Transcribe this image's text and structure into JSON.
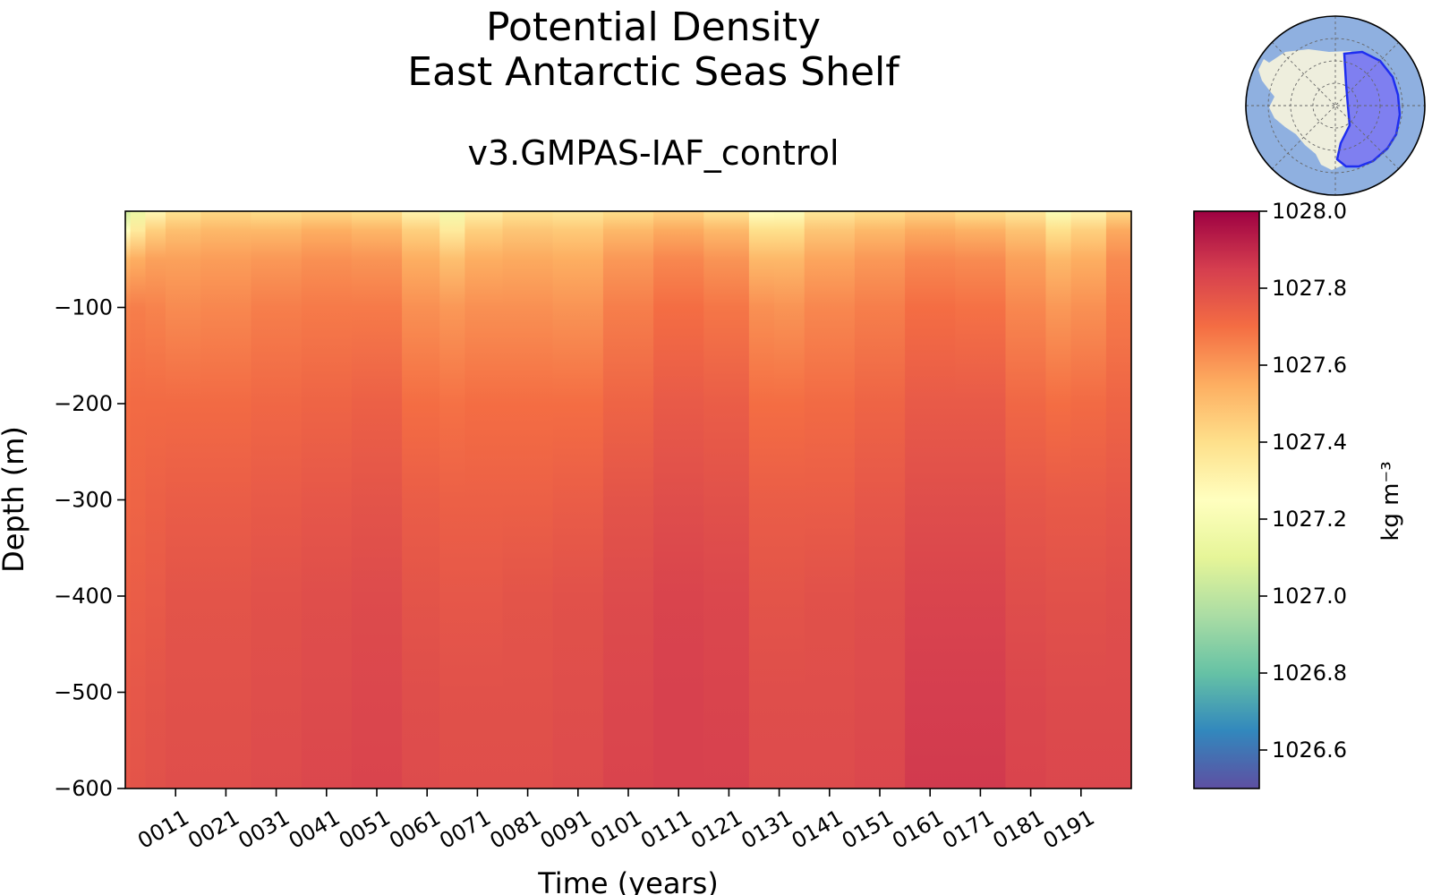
{
  "titles": {
    "line1": "Potential Density",
    "line2": "East Antarctic Seas Shelf",
    "subtitle": "v3.GMPAS-IAF_control"
  },
  "colors": {
    "cmap": [
      "#5e4fa2",
      "#3288bd",
      "#66c2a5",
      "#abdda4",
      "#e6f598",
      "#ffffbf",
      "#fee08b",
      "#fdae61",
      "#f46d43",
      "#d53e4f",
      "#9e0142"
    ],
    "inset_ocean": "#8fb0e0",
    "inset_land": "#eeeedd",
    "inset_region": "#7f7ff0",
    "inset_region_edge": "#1f2ef0"
  },
  "chart_data": {
    "type": "heatmap",
    "title": "Potential Density\nEast Antarctic Seas Shelf",
    "subtitle": "v3.GMPAS-IAF_control",
    "xlabel": "Time (years)",
    "ylabel": "Depth (m)",
    "xlim": [
      1,
      201
    ],
    "ylim": [
      -600,
      0
    ],
    "x_ticks": [
      11,
      21,
      31,
      41,
      51,
      61,
      71,
      81,
      91,
      101,
      111,
      121,
      131,
      141,
      151,
      161,
      171,
      181,
      191
    ],
    "x_tick_labels": [
      "0011",
      "0021",
      "0031",
      "0041",
      "0051",
      "0061",
      "0071",
      "0081",
      "0091",
      "0101",
      "0111",
      "0121",
      "0131",
      "0141",
      "0151",
      "0161",
      "0171",
      "0181",
      "0191"
    ],
    "y_ticks": [
      -100,
      -200,
      -300,
      -400,
      -500,
      -600
    ],
    "y_tick_labels": [
      "−100",
      "−200",
      "−300",
      "−400",
      "−500",
      "−600"
    ],
    "colorbar": {
      "label": "kg m⁻³",
      "vmin": 1026.5,
      "vmax": 1028.0,
      "ticks": [
        1028.0,
        1027.8,
        1027.6,
        1027.4,
        1027.2,
        1027.0,
        1026.8,
        1026.6
      ],
      "tick_labels": [
        "1028.0",
        "1027.8",
        "1027.6",
        "1027.4",
        "1027.2",
        "1027.0",
        "1026.8",
        "1026.6"
      ],
      "colormap": "Spectral_r"
    },
    "depths": [
      0,
      -20,
      -50,
      -100,
      -200,
      -300,
      -400,
      -500,
      -600
    ],
    "years": [
      1,
      3,
      7,
      11,
      21,
      31,
      41,
      51,
      61,
      66,
      71,
      81,
      91,
      101,
      111,
      121,
      129,
      131,
      141,
      151,
      161,
      171,
      181,
      187,
      191,
      201
    ],
    "values": [
      [
        1027.05,
        1027.25,
        1027.52,
        1027.65,
        1027.7,
        1027.72,
        1027.74,
        1027.76,
        1027.77
      ],
      [
        1027.15,
        1027.35,
        1027.55,
        1027.66,
        1027.71,
        1027.73,
        1027.75,
        1027.77,
        1027.78
      ],
      [
        1027.28,
        1027.45,
        1027.58,
        1027.65,
        1027.71,
        1027.74,
        1027.76,
        1027.78,
        1027.79
      ],
      [
        1027.38,
        1027.5,
        1027.58,
        1027.63,
        1027.71,
        1027.75,
        1027.78,
        1027.79,
        1027.8
      ],
      [
        1027.42,
        1027.52,
        1027.59,
        1027.64,
        1027.71,
        1027.75,
        1027.78,
        1027.79,
        1027.8
      ],
      [
        1027.4,
        1027.52,
        1027.6,
        1027.66,
        1027.72,
        1027.76,
        1027.79,
        1027.8,
        1027.81
      ],
      [
        1027.42,
        1027.55,
        1027.62,
        1027.67,
        1027.73,
        1027.77,
        1027.8,
        1027.81,
        1027.82
      ],
      [
        1027.4,
        1027.53,
        1027.61,
        1027.67,
        1027.74,
        1027.78,
        1027.81,
        1027.82,
        1027.83
      ],
      [
        1027.3,
        1027.45,
        1027.55,
        1027.62,
        1027.7,
        1027.75,
        1027.78,
        1027.8,
        1027.81
      ],
      [
        1027.18,
        1027.35,
        1027.5,
        1027.6,
        1027.69,
        1027.74,
        1027.77,
        1027.79,
        1027.8
      ],
      [
        1027.32,
        1027.45,
        1027.55,
        1027.62,
        1027.7,
        1027.74,
        1027.77,
        1027.79,
        1027.8
      ],
      [
        1027.38,
        1027.48,
        1027.56,
        1027.62,
        1027.7,
        1027.74,
        1027.78,
        1027.79,
        1027.8
      ],
      [
        1027.36,
        1027.47,
        1027.55,
        1027.61,
        1027.7,
        1027.75,
        1027.79,
        1027.8,
        1027.81
      ],
      [
        1027.4,
        1027.52,
        1027.6,
        1027.66,
        1027.73,
        1027.78,
        1027.81,
        1027.82,
        1027.83
      ],
      [
        1027.44,
        1027.56,
        1027.64,
        1027.7,
        1027.76,
        1027.8,
        1027.83,
        1027.84,
        1027.84
      ],
      [
        1027.38,
        1027.52,
        1027.61,
        1027.68,
        1027.75,
        1027.79,
        1027.82,
        1027.83,
        1027.84
      ],
      [
        1027.25,
        1027.4,
        1027.52,
        1027.62,
        1027.7,
        1027.75,
        1027.78,
        1027.8,
        1027.81
      ],
      [
        1027.24,
        1027.4,
        1027.52,
        1027.61,
        1027.7,
        1027.75,
        1027.78,
        1027.8,
        1027.81
      ],
      [
        1027.36,
        1027.48,
        1027.57,
        1027.64,
        1027.71,
        1027.75,
        1027.79,
        1027.8,
        1027.81
      ],
      [
        1027.4,
        1027.52,
        1027.6,
        1027.66,
        1027.73,
        1027.77,
        1027.8,
        1027.81,
        1027.82
      ],
      [
        1027.44,
        1027.56,
        1027.64,
        1027.7,
        1027.76,
        1027.8,
        1027.83,
        1027.85,
        1027.86
      ],
      [
        1027.4,
        1027.54,
        1027.63,
        1027.69,
        1027.76,
        1027.8,
        1027.83,
        1027.85,
        1027.86
      ],
      [
        1027.36,
        1027.49,
        1027.58,
        1027.64,
        1027.72,
        1027.77,
        1027.8,
        1027.82,
        1027.83
      ],
      [
        1027.22,
        1027.4,
        1027.52,
        1027.6,
        1027.7,
        1027.76,
        1027.79,
        1027.81,
        1027.82
      ],
      [
        1027.3,
        1027.45,
        1027.55,
        1027.62,
        1027.71,
        1027.76,
        1027.79,
        1027.81,
        1027.82
      ],
      [
        1027.42,
        1027.56,
        1027.63,
        1027.67,
        1027.73,
        1027.77,
        1027.8,
        1027.81,
        1027.82
      ]
    ]
  }
}
